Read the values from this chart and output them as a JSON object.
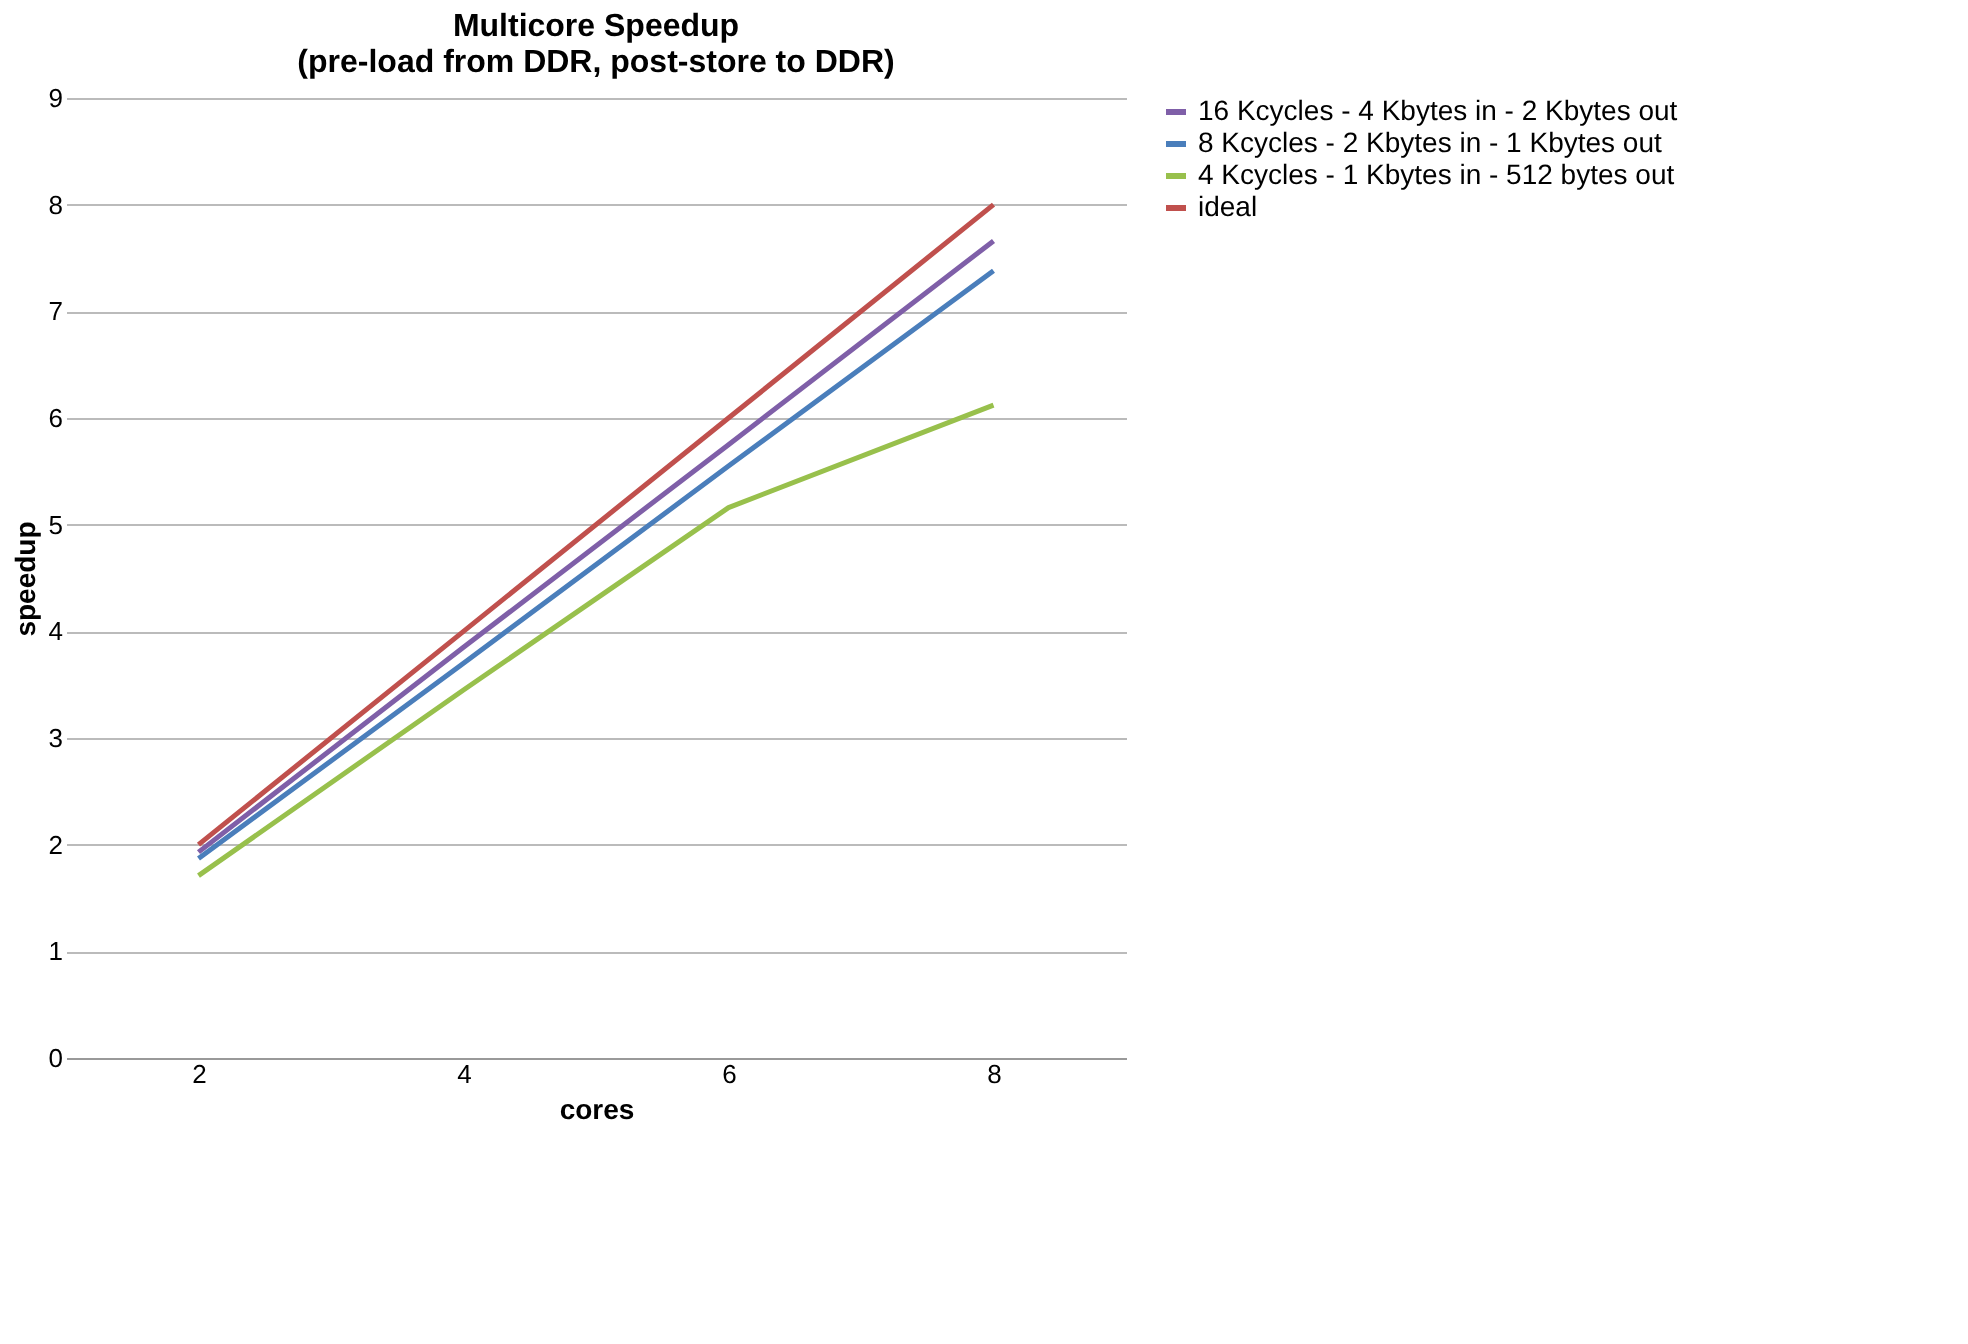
{
  "chart_data": {
    "type": "line",
    "title": [
      "Multicore Speedup",
      "(pre-load from DDR, post-store to DDR)"
    ],
    "xlabel": "cores",
    "ylabel": "speedup",
    "categories": [
      "2",
      "4",
      "6",
      "8"
    ],
    "series": [
      {
        "name": "16 Kcycles - 4 Kbytes in - 2 Kbytes out",
        "color": "#7f5fa8",
        "values": [
          1.93,
          3.85,
          5.75,
          7.66
        ]
      },
      {
        "name": "8 Kcycles - 2 Kbytes in - 1 Kbytes out",
        "color": "#4a7ebb",
        "values": [
          1.87,
          3.7,
          5.55,
          7.38
        ]
      },
      {
        "name": "4 Kcycles - 1 Kbytes in - 512 bytes out",
        "color": "#98c04c",
        "values": [
          1.71,
          3.45,
          5.16,
          6.12
        ]
      },
      {
        "name": "ideal",
        "color": "#c0504d",
        "values": [
          2,
          4,
          6,
          8
        ]
      }
    ],
    "ylim": [
      0,
      9
    ],
    "yticks": [
      0,
      1,
      2,
      3,
      4,
      5,
      6,
      7,
      8,
      9
    ],
    "grid": "y",
    "legend": "right",
    "marker": "none",
    "line_style": "solid"
  }
}
